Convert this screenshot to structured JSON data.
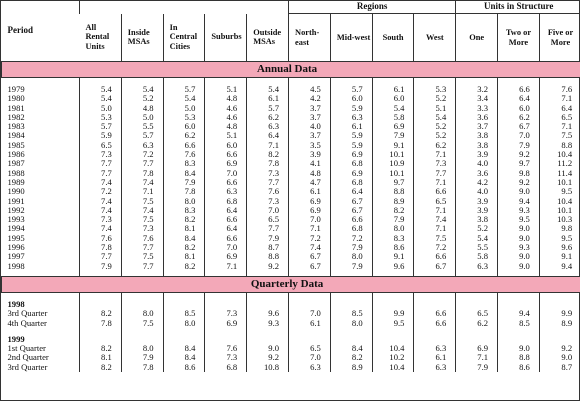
{
  "header": {
    "period": "Period",
    "regions": "Regions",
    "units_in_structure": "Units in Structure",
    "columns": [
      "All Rental Units",
      "Inside MSAs",
      "In Central Cities",
      "Suburbs",
      "Outside MSAs",
      "North-east",
      "Mid-west",
      "South",
      "West",
      "One",
      "Two or More",
      "Five or More"
    ]
  },
  "annual": {
    "label": "Annual Data",
    "rows": [
      {
        "period": "1979",
        "values": [
          "5.4",
          "5.4",
          "5.7",
          "5.1",
          "5.4",
          "4.5",
          "5.7",
          "6.1",
          "5.3",
          "3.2",
          "6.6",
          "7.6"
        ]
      },
      {
        "period": "1980",
        "values": [
          "5.4",
          "5.2",
          "5.4",
          "4.8",
          "6.1",
          "4.2",
          "6.0",
          "6.0",
          "5.2",
          "3.4",
          "6.4",
          "7.1"
        ]
      },
      {
        "period": "1981",
        "values": [
          "5.0",
          "4.8",
          "5.0",
          "4.6",
          "5.7",
          "3.7",
          "5.9",
          "5.4",
          "5.1",
          "3.3",
          "6.0",
          "6.4"
        ]
      },
      {
        "period": "1982",
        "values": [
          "5.3",
          "5.0",
          "5.3",
          "4.6",
          "6.2",
          "3.7",
          "6.3",
          "5.8",
          "5.4",
          "3.6",
          "6.2",
          "6.5"
        ]
      },
      {
        "period": "1983",
        "values": [
          "5.7",
          "5.5",
          "6.0",
          "4.8",
          "6.3",
          "4.0",
          "6.1",
          "6.9",
          "5.2",
          "3.7",
          "6.7",
          "7.1"
        ]
      },
      {
        "period": "1984",
        "values": [
          "5.9",
          "5.7",
          "6.2",
          "5.1",
          "6.4",
          "3.7",
          "5.9",
          "7.9",
          "5.2",
          "3.8",
          "7.0",
          "7.5"
        ]
      },
      {
        "period": "1985",
        "values": [
          "6.5",
          "6.3",
          "6.6",
          "6.0",
          "7.1",
          "3.5",
          "5.9",
          "9.1",
          "6.2",
          "3.8",
          "7.9",
          "8.8"
        ]
      },
      {
        "period": "1986",
        "values": [
          "7.3",
          "7.2",
          "7.6",
          "6.6",
          "8.2",
          "3.9",
          "6.9",
          "10.1",
          "7.1",
          "3.9",
          "9.2",
          "10.4"
        ]
      },
      {
        "period": "1987",
        "values": [
          "7.7",
          "7.7",
          "8.3",
          "6.9",
          "7.8",
          "4.1",
          "6.8",
          "10.9",
          "7.3",
          "4.0",
          "9.7",
          "11.2"
        ]
      },
      {
        "period": "1988",
        "values": [
          "7.7",
          "7.8",
          "8.4",
          "7.0",
          "7.3",
          "4.8",
          "6.9",
          "10.1",
          "7.7",
          "3.6",
          "9.8",
          "11.4"
        ]
      },
      {
        "period": "1989",
        "values": [
          "7.4",
          "7.4",
          "7.9",
          "6.6",
          "7.7",
          "4.7",
          "6.8",
          "9.7",
          "7.1",
          "4.2",
          "9.2",
          "10.1"
        ]
      },
      {
        "period": "1990",
        "values": [
          "7.2",
          "7.1",
          "7.8",
          "6.3",
          "7.6",
          "6.1",
          "6.4",
          "8.8",
          "6.6",
          "4.0",
          "9.0",
          "9.5"
        ]
      },
      {
        "period": "1991",
        "values": [
          "7.4",
          "7.5",
          "8.0",
          "6.8",
          "7.3",
          "6.9",
          "6.7",
          "8.9",
          "6.5",
          "3.9",
          "9.4",
          "10.4"
        ]
      },
      {
        "period": "1992",
        "values": [
          "7.4",
          "7.4",
          "8.3",
          "6.4",
          "7.0",
          "6.9",
          "6.7",
          "8.2",
          "7.1",
          "3.9",
          "9.3",
          "10.1"
        ]
      },
      {
        "period": "1993",
        "values": [
          "7.3",
          "7.5",
          "8.2",
          "6.6",
          "6.5",
          "7.0",
          "6.6",
          "7.9",
          "7.4",
          "3.8",
          "9.5",
          "10.3"
        ]
      },
      {
        "period": "1994",
        "values": [
          "7.4",
          "7.3",
          "8.1",
          "6.4",
          "7.7",
          "7.1",
          "6.8",
          "8.0",
          "7.1",
          "5.2",
          "9.0",
          "9.8"
        ]
      },
      {
        "period": "1995",
        "values": [
          "7.6",
          "7.6",
          "8.4",
          "6.6",
          "7.9",
          "7.2",
          "7.2",
          "8.3",
          "7.5",
          "5.4",
          "9.0",
          "9.5"
        ]
      },
      {
        "period": "1996",
        "values": [
          "7.8",
          "7.7",
          "8.2",
          "7.0",
          "8.7",
          "7.4",
          "7.9",
          "8.6",
          "7.2",
          "5.5",
          "9.3",
          "9.6"
        ]
      },
      {
        "period": "1997",
        "values": [
          "7.7",
          "7.5",
          "8.1",
          "6.9",
          "8.8",
          "6.7",
          "8.0",
          "9.1",
          "6.6",
          "5.8",
          "9.0",
          "9.1"
        ]
      },
      {
        "period": "1998",
        "values": [
          "7.9",
          "7.7",
          "8.2",
          "7.1",
          "9.2",
          "6.7",
          "7.9",
          "9.6",
          "6.7",
          "6.3",
          "9.0",
          "9.4"
        ]
      }
    ]
  },
  "quarterly": {
    "label": "Quarterly Data",
    "groups": [
      {
        "year": "1998",
        "rows": [
          {
            "period": "3rd Quarter",
            "values": [
              "8.2",
              "8.0",
              "8.5",
              "7.3",
              "9.6",
              "7.0",
              "8.5",
              "9.9",
              "6.6",
              "6.5",
              "9.4",
              "9.9"
            ]
          },
          {
            "period": "4th Quarter",
            "values": [
              "7.8",
              "7.5",
              "8.0",
              "6.9",
              "9.3",
              "6.1",
              "8.0",
              "9.5",
              "6.6",
              "6.2",
              "8.5",
              "8.9"
            ]
          }
        ]
      },
      {
        "year": "1999",
        "rows": [
          {
            "period": "1st Quarter",
            "values": [
              "8.2",
              "8.0",
              "8.4",
              "7.6",
              "9.0",
              "6.5",
              "8.4",
              "10.4",
              "6.3",
              "6.9",
              "9.0",
              "9.2"
            ]
          },
          {
            "period": "2nd Quarter",
            "values": [
              "8.1",
              "7.9",
              "8.4",
              "7.3",
              "9.2",
              "7.0",
              "8.2",
              "10.2",
              "6.1",
              "7.1",
              "8.8",
              "9.0"
            ]
          },
          {
            "period": "3rd Quarter",
            "values": [
              "8.2",
              "7.8",
              "8.6",
              "6.8",
              "10.8",
              "6.3",
              "8.9",
              "10.4",
              "6.3",
              "7.9",
              "8.6",
              "8.7"
            ]
          }
        ]
      }
    ]
  }
}
